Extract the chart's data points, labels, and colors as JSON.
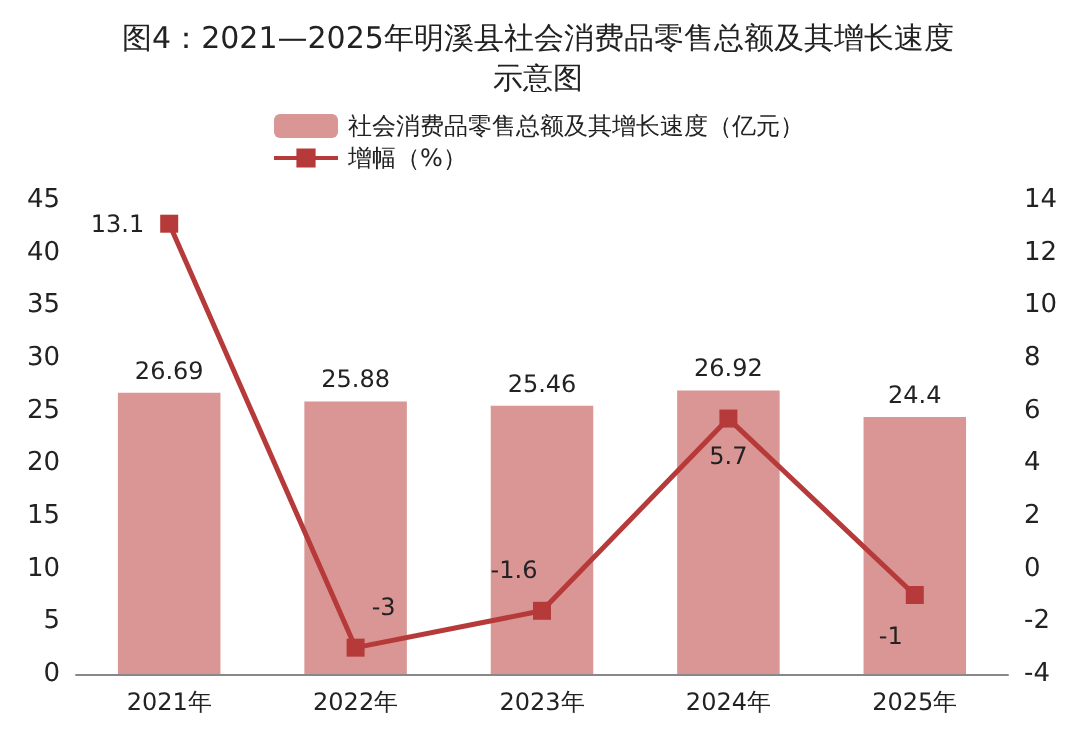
{
  "chart_data": {
    "type": "bar",
    "title": "图4：2021—2025年明溪县社会消费品零售总额及其增长速度示意图",
    "categories": [
      "2021年",
      "2022年",
      "2023年",
      "2024年",
      "2025年"
    ],
    "series": [
      {
        "name": "社会消费品零售总额及其增长速度（亿元）",
        "color": "#d99694",
        "values": [
          26.69,
          25.88,
          25.46,
          26.92,
          24.4
        ]
      },
      {
        "name": "增幅（%）",
        "type": "line",
        "axis": "y2",
        "color": "#b73a3a",
        "marker": "square",
        "values": [
          13.1,
          -3,
          -1.6,
          5.7,
          -1
        ]
      }
    ],
    "data_labels": true,
    "legend": "top",
    "grid": false,
    "ylim": [
      0,
      45
    ],
    "yticks": [
      0,
      5,
      10,
      15,
      20,
      25,
      30,
      35,
      40,
      45
    ],
    "y2lim": [
      -4,
      14
    ],
    "y2ticks": [
      -4,
      -2,
      0,
      2,
      4,
      6,
      8,
      10,
      12,
      14
    ]
  }
}
